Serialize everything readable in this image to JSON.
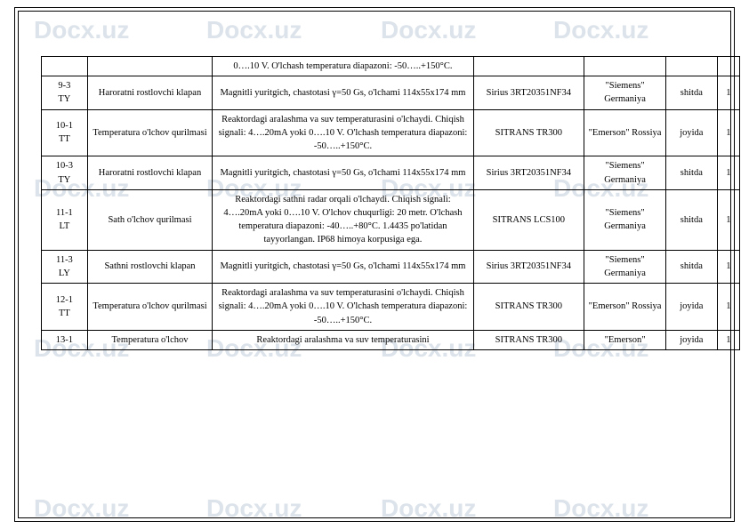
{
  "watermark_text": "Docx.uz",
  "table": {
    "rows": [
      {
        "id": "",
        "name": "",
        "desc": "0….10 V. O'lchash temperatura diapazoni: -50…..+150°C.",
        "model": "",
        "mfr": "",
        "loc": "",
        "qty": ""
      },
      {
        "id": "9-3\nTY",
        "name": "Haroratni rostlovchi klapan",
        "desc": "Magnitli yuritgich, chastotasi γ=50 Gs, o'lchami 114x55x174 mm",
        "model": "Sirius 3RT20351NF34",
        "mfr": "\"Siemens\" Germaniya",
        "loc": "shitda",
        "qty": "1"
      },
      {
        "id": "10-1\nTT",
        "name": "Temperatura o'lchov qurilmasi",
        "desc": "Reaktordagi aralashma va suv temperaturasini o'lchaydi. Chiqish signali: 4….20mA yoki 0….10 V. O'lchash temperatura diapazoni: -50…..+150°C.",
        "model": "SITRANS TR300",
        "mfr": "\"Emerson\" Rossiya",
        "loc": "joyida",
        "qty": "1"
      },
      {
        "id": "10-3\nTY",
        "name": "Haroratni rostlovchi klapan",
        "desc": "Magnitli yuritgich, chastotasi γ=50 Gs, o'lchami 114x55x174 mm",
        "model": "Sirius 3RT20351NF34",
        "mfr": "\"Siemens\" Germaniya",
        "loc": "shitda",
        "qty": "1"
      },
      {
        "id": "11-1\nLT",
        "name": "Sath o'lchov qurilmasi",
        "desc": "Reaktordagi sathni radar orqali o'lchaydi. Chiqish signali: 4….20mA yoki 0….10 V. O'lchov chuqurligi: 20 metr. O'lchash temperatura diapazoni: -40…..+80°C. 1.4435 po'latidan tayyorlangan. IP68 himoya korpusiga ega.",
        "model": "SITRANS LCS100",
        "mfr": "\"Siemens\" Germaniya",
        "loc": "shitda",
        "qty": "1"
      },
      {
        "id": "11-3\nLY",
        "name": "Sathni rostlovchi klapan",
        "desc": "Magnitli yuritgich, chastotasi γ=50 Gs, o'lchami 114x55x174 mm",
        "model": "Sirius 3RT20351NF34",
        "mfr": "\"Siemens\" Germaniya",
        "loc": "shitda",
        "qty": "1"
      },
      {
        "id": "12-1\nTT",
        "name": "Temperatura o'lchov qurilmasi",
        "desc": "Reaktordagi aralashma va suv temperaturasini o'lchaydi. Chiqish signali: 4….20mA yoki 0….10 V. O'lchash temperatura diapazoni: -50…..+150°C.",
        "model": "SITRANS TR300",
        "mfr": "\"Emerson\" Rossiya",
        "loc": "joyida",
        "qty": "1"
      },
      {
        "id": "13-1",
        "name": "Temperatura o'lchov",
        "desc": "Reaktordagi aralashma va suv temperaturasini",
        "model": "SITRANS TR300",
        "mfr": "\"Emerson\"",
        "loc": "joyida",
        "qty": "1"
      }
    ]
  }
}
